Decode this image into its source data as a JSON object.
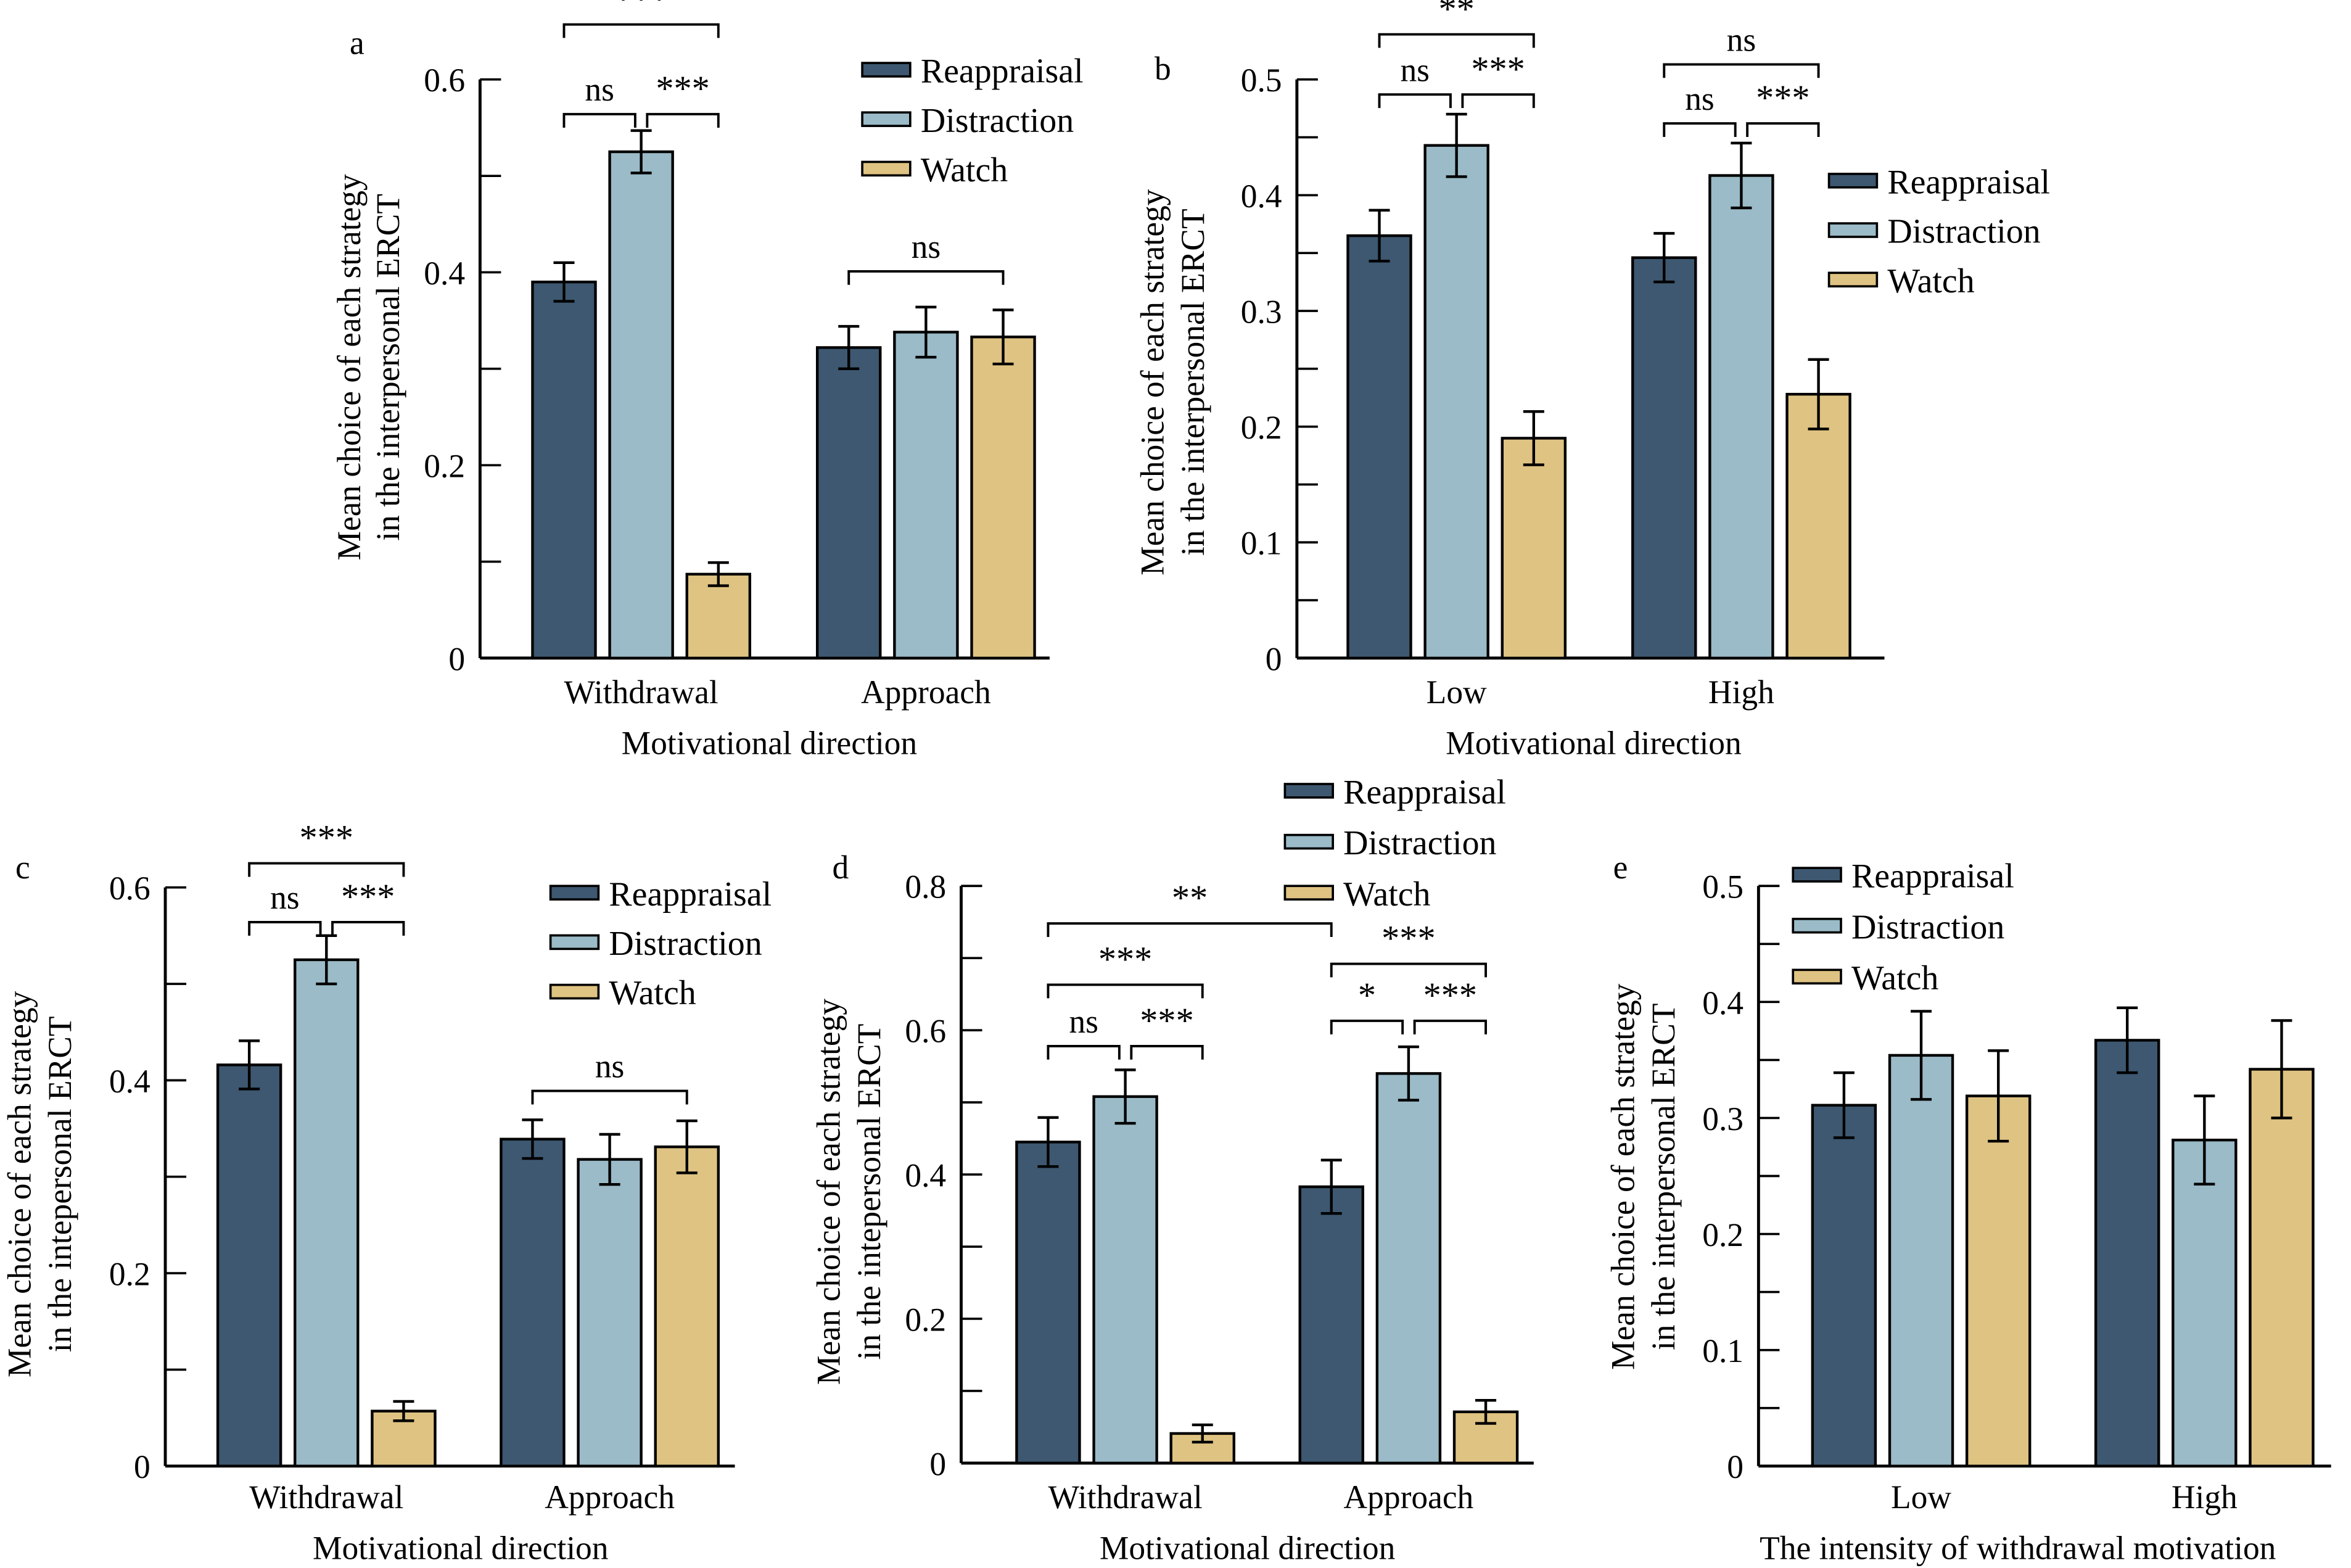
{
  "colors": {
    "Reappraisal": "#3d5870",
    "Distraction": "#9abbc7",
    "Watch": "#dfc382"
  },
  "chart_data": [
    {
      "panel": "a",
      "type": "bar",
      "categories": [
        "Withdrawal",
        "Approach"
      ],
      "xlabel": "Motivational direction",
      "ylabel": [
        "Mean choice of each strategy",
        "in the interpersonal ERCT"
      ],
      "ylim": [
        0,
        0.6
      ],
      "yticks": [
        "0",
        "0.2",
        "0.4",
        "0.6"
      ],
      "minor_step": 0.1,
      "legend": [
        "Reappraisal",
        "Distraction",
        "Watch"
      ],
      "legend_placement": "top-right",
      "series": [
        {
          "name": "Reappraisal",
          "values": [
            0.39,
            0.322
          ],
          "errors": [
            0.02,
            0.022
          ]
        },
        {
          "name": "Distraction",
          "values": [
            0.525,
            0.338
          ],
          "errors": [
            0.022,
            0.026
          ]
        },
        {
          "name": "Watch",
          "values": [
            0.087,
            0.333
          ],
          "errors": [
            0.012,
            0.028
          ]
        }
      ],
      "significance": [
        {
          "from": [
            0,
            0
          ],
          "to": [
            0,
            1
          ],
          "level": 0.564,
          "label": "ns"
        },
        {
          "from": [
            0,
            1
          ],
          "to": [
            0,
            2
          ],
          "level": 0.564,
          "label": "***"
        },
        {
          "from": [
            0,
            0
          ],
          "to": [
            0,
            2
          ],
          "level": 0.657,
          "label": "***"
        },
        {
          "from": [
            1,
            0
          ],
          "to": [
            1,
            2
          ],
          "level": 0.401,
          "label": "ns"
        }
      ]
    },
    {
      "panel": "b",
      "type": "bar",
      "categories": [
        "Low",
        "High"
      ],
      "xlabel": "Motivational direction",
      "ylabel": [
        "Mean choice of each strategy",
        "in the interpersonal ERCT"
      ],
      "ylim": [
        0,
        0.5
      ],
      "yticks": [
        "0",
        "0.1",
        "0.2",
        "0.3",
        "0.4",
        "0.5"
      ],
      "minor_step": 0.05,
      "legend": [
        "Reappraisal",
        "Distraction",
        "Watch"
      ],
      "legend_placement": "right",
      "series": [
        {
          "name": "Reappraisal",
          "values": [
            0.365,
            0.346
          ],
          "errors": [
            0.022,
            0.021
          ]
        },
        {
          "name": "Distraction",
          "values": [
            0.443,
            0.417
          ],
          "errors": [
            0.027,
            0.028
          ]
        },
        {
          "name": "Watch",
          "values": [
            0.19,
            0.228
          ],
          "errors": [
            0.023,
            0.03
          ]
        }
      ],
      "significance": [
        {
          "from": [
            0,
            0
          ],
          "to": [
            0,
            1
          ],
          "level": 0.487,
          "label": "ns"
        },
        {
          "from": [
            0,
            1
          ],
          "to": [
            0,
            2
          ],
          "level": 0.487,
          "label": "***"
        },
        {
          "from": [
            0,
            0
          ],
          "to": [
            0,
            2
          ],
          "level": 0.539,
          "label": "**"
        },
        {
          "from": [
            1,
            0
          ],
          "to": [
            1,
            1
          ],
          "level": 0.462,
          "label": "ns"
        },
        {
          "from": [
            1,
            1
          ],
          "to": [
            1,
            2
          ],
          "level": 0.462,
          "label": "***"
        },
        {
          "from": [
            1,
            0
          ],
          "to": [
            1,
            2
          ],
          "level": 0.513,
          "label": "ns"
        }
      ]
    },
    {
      "panel": "c",
      "type": "bar",
      "categories": [
        "Withdrawal",
        "Approach"
      ],
      "xlabel": "Motivational direction",
      "ylabel": [
        "Mean choice of each strategy",
        "in the intepersonal ERCT"
      ],
      "ylim": [
        0,
        0.6
      ],
      "yticks": [
        "0",
        "0.2",
        "0.4",
        "0.6"
      ],
      "minor_step": 0.1,
      "legend": [
        "Reappraisal",
        "Distraction",
        "Watch"
      ],
      "legend_placement": "top-right",
      "series": [
        {
          "name": "Reappraisal",
          "values": [
            0.416,
            0.339
          ],
          "errors": [
            0.025,
            0.02
          ]
        },
        {
          "name": "Distraction",
          "values": [
            0.525,
            0.318
          ],
          "errors": [
            0.025,
            0.026
          ]
        },
        {
          "name": "Watch",
          "values": [
            0.057,
            0.331
          ],
          "errors": [
            0.01,
            0.027
          ]
        }
      ],
      "significance": [
        {
          "from": [
            0,
            0
          ],
          "to": [
            0,
            1
          ],
          "level": 0.564,
          "label": "ns"
        },
        {
          "from": [
            0,
            1
          ],
          "to": [
            0,
            2
          ],
          "level": 0.564,
          "label": "***"
        },
        {
          "from": [
            0,
            0
          ],
          "to": [
            0,
            2
          ],
          "level": 0.625,
          "label": "***"
        },
        {
          "from": [
            1,
            0
          ],
          "to": [
            1,
            2
          ],
          "level": 0.389,
          "label": "ns"
        }
      ]
    },
    {
      "panel": "d",
      "type": "bar",
      "categories": [
        "Withdrawal",
        "Approach"
      ],
      "xlabel": "Motivational direction",
      "ylabel": [
        "Mean choice of each strategy",
        "in the intepersonal ERCT"
      ],
      "ylim": [
        0,
        0.8
      ],
      "yticks": [
        "0",
        "0.2",
        "0.4",
        "0.6",
        "0.8"
      ],
      "minor_step": 0.1,
      "legend": [
        "Reappraisal",
        "Distraction",
        "Watch"
      ],
      "legend_placement": "top",
      "series": [
        {
          "name": "Reappraisal",
          "values": [
            0.445,
            0.383
          ],
          "errors": [
            0.034,
            0.037
          ]
        },
        {
          "name": "Distraction",
          "values": [
            0.508,
            0.54
          ],
          "errors": [
            0.037,
            0.037
          ]
        },
        {
          "name": "Watch",
          "values": [
            0.041,
            0.071
          ],
          "errors": [
            0.012,
            0.016
          ]
        }
      ],
      "significance": [
        {
          "from": [
            0,
            0
          ],
          "to": [
            0,
            1
          ],
          "level": 0.578,
          "label": "ns"
        },
        {
          "from": [
            0,
            1
          ],
          "to": [
            0,
            2
          ],
          "level": 0.578,
          "label": "***"
        },
        {
          "from": [
            0,
            0
          ],
          "to": [
            0,
            2
          ],
          "level": 0.663,
          "label": "***"
        },
        {
          "from": [
            0,
            0
          ],
          "to": [
            1,
            0
          ],
          "level": 0.748,
          "label": "**"
        },
        {
          "from": [
            1,
            0
          ],
          "to": [
            1,
            1
          ],
          "level": 0.613,
          "label": "*"
        },
        {
          "from": [
            1,
            1
          ],
          "to": [
            1,
            2
          ],
          "level": 0.613,
          "label": "***"
        },
        {
          "from": [
            1,
            0
          ],
          "to": [
            1,
            2
          ],
          "level": 0.692,
          "label": "***"
        }
      ]
    },
    {
      "panel": "e",
      "type": "bar",
      "categories": [
        "Low",
        "High"
      ],
      "xlabel": "The intensity of withdrawal motivation",
      "ylabel": [
        "Mean choice of each strategy",
        "in the interpersonal ERCT"
      ],
      "ylim": [
        0,
        0.5
      ],
      "yticks": [
        "0",
        "0.1",
        "0.2",
        "0.3",
        "0.4",
        "0.5"
      ],
      "minor_step": 0.05,
      "legend": [
        "Reappraisal",
        "Distraction",
        "Watch"
      ],
      "legend_placement": "top-left",
      "series": [
        {
          "name": "Reappraisal",
          "values": [
            0.311,
            0.367
          ],
          "errors": [
            0.028,
            0.028
          ]
        },
        {
          "name": "Distraction",
          "values": [
            0.354,
            0.281
          ],
          "errors": [
            0.038,
            0.038
          ]
        },
        {
          "name": "Watch",
          "values": [
            0.319,
            0.342
          ],
          "errors": [
            0.039,
            0.042
          ]
        }
      ],
      "significance": []
    }
  ]
}
